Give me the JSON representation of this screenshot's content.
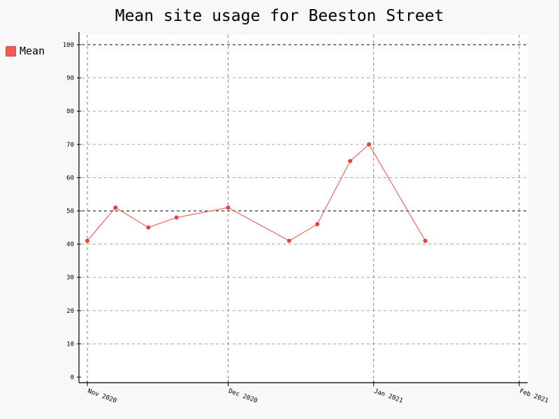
{
  "chart_data": {
    "type": "line",
    "title": "Mean site usage for Beeston Street",
    "xlabel": "",
    "ylabel": "",
    "ylim": [
      0,
      100
    ],
    "yticks": [
      0,
      10,
      20,
      30,
      40,
      50,
      60,
      70,
      80,
      90,
      100
    ],
    "major_yticks": [
      50,
      100
    ],
    "xlim": [
      "2020-11-01",
      "2021-02-01"
    ],
    "xticks": [
      {
        "date": "2020-11-01",
        "label": "Nov 2020"
      },
      {
        "date": "2020-12-01",
        "label": "Dec 2020"
      },
      {
        "date": "2021-01-01",
        "label": "Jan 2021"
      },
      {
        "date": "2021-02-01",
        "label": "Feb 2021"
      }
    ],
    "grid": true,
    "legend_position": "top-left",
    "series": [
      {
        "name": "Mean",
        "color": "#f05a54",
        "points": [
          {
            "x": "2020-11-01",
            "y": 41
          },
          {
            "x": "2020-11-07",
            "y": 51
          },
          {
            "x": "2020-11-14",
            "y": 45
          },
          {
            "x": "2020-11-20",
            "y": 48
          },
          {
            "x": "2020-12-01",
            "y": 51
          },
          {
            "x": "2020-12-14",
            "y": 41
          },
          {
            "x": "2020-12-20",
            "y": 46
          },
          {
            "x": "2020-12-27",
            "y": 65
          },
          {
            "x": "2020-12-31",
            "y": 70
          },
          {
            "x": "2021-01-12",
            "y": 41
          }
        ]
      }
    ]
  }
}
